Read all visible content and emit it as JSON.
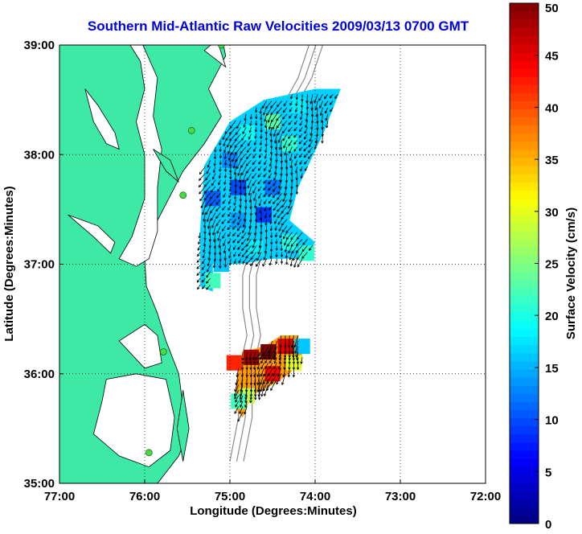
{
  "chart_data": {
    "type": "heatmap",
    "title": "Southern Mid-Atlantic Raw Velocities 2009/03/13 0700 GMT",
    "xlabel": "Longitude (Degrees:Minutes)",
    "ylabel": "Latitude (Degrees:Minutes)",
    "xlim": [
      -77,
      -72
    ],
    "ylim": [
      35,
      39
    ],
    "x_ticks": [
      {
        "value": -77,
        "label": "77:00"
      },
      {
        "value": -76,
        "label": "76:00"
      },
      {
        "value": -75,
        "label": "75:00"
      },
      {
        "value": -74,
        "label": "74:00"
      },
      {
        "value": -73,
        "label": "73:00"
      },
      {
        "value": -72,
        "label": "72:00"
      }
    ],
    "y_ticks": [
      {
        "value": 35,
        "label": "35:00"
      },
      {
        "value": 36,
        "label": "36:00"
      },
      {
        "value": 37,
        "label": "37:00"
      },
      {
        "value": 38,
        "label": "38:00"
      },
      {
        "value": 39,
        "label": "39:00"
      }
    ],
    "grid": true,
    "colorbar": {
      "label": "Surface Velocity (cm/s)",
      "range": [
        0,
        50
      ],
      "ticks": [
        {
          "value": 0,
          "label": "0"
        },
        {
          "value": 5,
          "label": "5"
        },
        {
          "value": 10,
          "label": "10"
        },
        {
          "value": 15,
          "label": "15"
        },
        {
          "value": 20,
          "label": "20"
        },
        {
          "value": 25,
          "label": "25"
        },
        {
          "value": 30,
          "label": "30"
        },
        {
          "value": 35,
          "label": "35"
        },
        {
          "value": 40,
          "label": "40"
        },
        {
          "value": 45,
          "label": "45"
        },
        {
          "value": 50,
          "label": "50"
        }
      ]
    },
    "regions": [
      {
        "name": "northern field",
        "polygon": [
          [
            -74.0,
            38.6
          ],
          [
            -73.7,
            38.6
          ],
          [
            -73.9,
            38.2
          ],
          [
            -74.2,
            37.7
          ],
          [
            -74.3,
            37.4
          ],
          [
            -74.0,
            37.2
          ],
          [
            -74.1,
            37.05
          ],
          [
            -74.5,
            37.05
          ],
          [
            -74.9,
            37.0
          ],
          [
            -75.2,
            37.0
          ],
          [
            -75.2,
            36.75
          ],
          [
            -75.35,
            36.8
          ],
          [
            -75.35,
            37.3
          ],
          [
            -75.3,
            37.9
          ],
          [
            -75.0,
            38.3
          ],
          [
            -74.6,
            38.5
          ]
        ],
        "cells": [
          {
            "lon": -74.2,
            "lat": 38.45,
            "v": 18
          },
          {
            "lon": -74.5,
            "lat": 38.3,
            "v": 23
          },
          {
            "lon": -74.8,
            "lat": 38.2,
            "v": 19
          },
          {
            "lon": -74.3,
            "lat": 38.1,
            "v": 21
          },
          {
            "lon": -74.6,
            "lat": 38.0,
            "v": 17
          },
          {
            "lon": -75.0,
            "lat": 37.95,
            "v": 13
          },
          {
            "lon": -74.9,
            "lat": 37.7,
            "v": 10
          },
          {
            "lon": -75.2,
            "lat": 37.6,
            "v": 11
          },
          {
            "lon": -74.5,
            "lat": 37.7,
            "v": 12
          },
          {
            "lon": -74.6,
            "lat": 37.45,
            "v": 9
          },
          {
            "lon": -74.9,
            "lat": 37.4,
            "v": 14
          },
          {
            "lon": -75.2,
            "lat": 37.3,
            "v": 17
          },
          {
            "lon": -74.3,
            "lat": 37.2,
            "v": 20
          },
          {
            "lon": -74.7,
            "lat": 37.15,
            "v": 18
          },
          {
            "lon": -75.1,
            "lat": 37.0,
            "v": 16
          },
          {
            "lon": -75.2,
            "lat": 36.85,
            "v": 22
          },
          {
            "lon": -74.1,
            "lat": 37.1,
            "v": 21
          }
        ]
      },
      {
        "name": "southern field",
        "polygon": [
          [
            -74.4,
            36.35
          ],
          [
            -74.2,
            36.35
          ],
          [
            -74.15,
            36.15
          ],
          [
            -74.3,
            36.0
          ],
          [
            -74.5,
            35.9
          ],
          [
            -74.75,
            35.8
          ],
          [
            -74.85,
            35.6
          ],
          [
            -74.95,
            35.7
          ],
          [
            -74.9,
            36.05
          ],
          [
            -74.85,
            36.2
          ],
          [
            -74.6,
            36.25
          ]
        ],
        "cells": [
          {
            "lon": -74.75,
            "lat": 36.15,
            "v": 48
          },
          {
            "lon": -74.55,
            "lat": 36.2,
            "v": 50
          },
          {
            "lon": -74.35,
            "lat": 36.25,
            "v": 45
          },
          {
            "lon": -74.25,
            "lat": 36.1,
            "v": 30
          },
          {
            "lon": -74.5,
            "lat": 36.0,
            "v": 44
          },
          {
            "lon": -74.15,
            "lat": 36.25,
            "v": 16
          },
          {
            "lon": -74.8,
            "lat": 35.8,
            "v": 28
          },
          {
            "lon": -74.9,
            "lat": 35.75,
            "v": 22
          },
          {
            "lon": -74.95,
            "lat": 36.1,
            "v": 42
          }
        ]
      }
    ],
    "colors": {
      "land": "#3ee8a5",
      "coastline": "#000000",
      "ocean": "#ffffff",
      "bathymetry": "#8a8a8a",
      "site_marker": "#44dd44",
      "title": "#0000dd",
      "grid": "#000000"
    }
  }
}
